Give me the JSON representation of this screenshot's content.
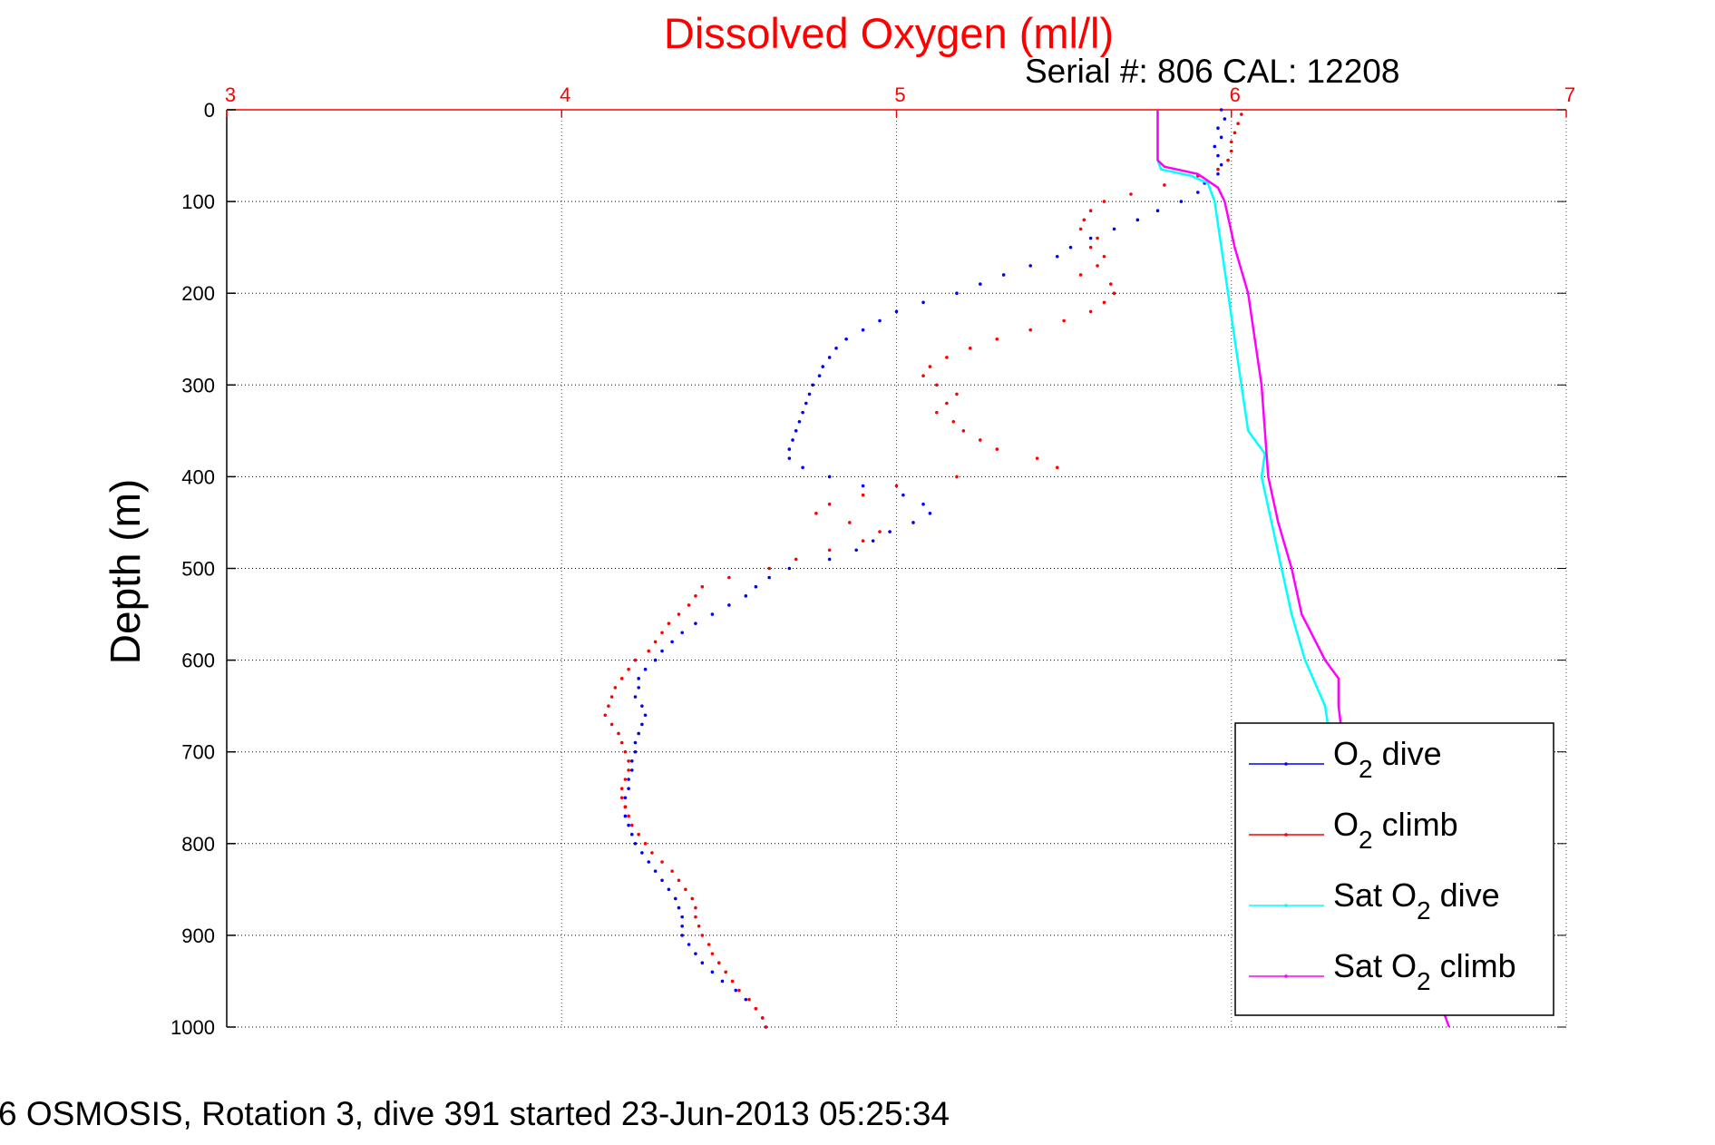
{
  "chart_data": {
    "type": "scatter",
    "title": "Dissolved Oxygen (ml/l)",
    "subtitle": "Serial #: 806  CAL: 12208",
    "ylabel": "Depth (m)",
    "xlabel": "",
    "xlim": [
      3,
      7
    ],
    "ylim": [
      0,
      1000
    ],
    "y_reversed": true,
    "x_axis_position": "top",
    "x_ticks": [
      3,
      4,
      5,
      6,
      7
    ],
    "x_tick_labels": [
      "3",
      "4",
      "5",
      "6",
      "7"
    ],
    "y_ticks": [
      0,
      100,
      200,
      300,
      400,
      500,
      600,
      700,
      800,
      900,
      1000
    ],
    "y_tick_labels": [
      "0",
      "100",
      "200",
      "300",
      "400",
      "500",
      "600",
      "700",
      "800",
      "900",
      "1000"
    ],
    "grid": true,
    "legend_position": "bottom-right",
    "legend": [
      {
        "label_main": "O",
        "label_sub": "2",
        "label_rest": " dive",
        "color": "#0000ff",
        "style": "dots"
      },
      {
        "label_main": "O",
        "label_sub": "2",
        "label_rest": " climb",
        "color": "#ff0000",
        "style": "dots"
      },
      {
        "label_main": "Sat O",
        "label_sub": "2",
        "label_rest": " dive",
        "color": "#00ffff",
        "style": "line"
      },
      {
        "label_main": "Sat O",
        "label_sub": "2",
        "label_rest": " climb",
        "color": "#ff00ff",
        "style": "line"
      }
    ],
    "series": [
      {
        "name": "O2 dive",
        "color": "#0000ff",
        "style": "dots",
        "points": [
          [
            5.97,
            0
          ],
          [
            5.98,
            10
          ],
          [
            5.96,
            20
          ],
          [
            5.97,
            30
          ],
          [
            5.95,
            40
          ],
          [
            5.96,
            50
          ],
          [
            5.97,
            60
          ],
          [
            5.96,
            70
          ],
          [
            5.92,
            80
          ],
          [
            5.9,
            90
          ],
          [
            5.85,
            100
          ],
          [
            5.78,
            110
          ],
          [
            5.72,
            120
          ],
          [
            5.65,
            130
          ],
          [
            5.58,
            140
          ],
          [
            5.52,
            150
          ],
          [
            5.48,
            160
          ],
          [
            5.4,
            170
          ],
          [
            5.32,
            180
          ],
          [
            5.25,
            190
          ],
          [
            5.18,
            200
          ],
          [
            5.08,
            210
          ],
          [
            5.0,
            220
          ],
          [
            4.95,
            230
          ],
          [
            4.9,
            240
          ],
          [
            4.85,
            250
          ],
          [
            4.82,
            260
          ],
          [
            4.8,
            270
          ],
          [
            4.78,
            280
          ],
          [
            4.77,
            290
          ],
          [
            4.75,
            300
          ],
          [
            4.74,
            310
          ],
          [
            4.73,
            320
          ],
          [
            4.72,
            330
          ],
          [
            4.71,
            340
          ],
          [
            4.7,
            350
          ],
          [
            4.69,
            360
          ],
          [
            4.68,
            370
          ],
          [
            4.68,
            380
          ],
          [
            4.72,
            390
          ],
          [
            4.8,
            400
          ],
          [
            4.9,
            410
          ],
          [
            5.02,
            420
          ],
          [
            5.08,
            430
          ],
          [
            5.1,
            440
          ],
          [
            5.05,
            450
          ],
          [
            4.98,
            460
          ],
          [
            4.93,
            470
          ],
          [
            4.88,
            480
          ],
          [
            4.8,
            490
          ],
          [
            4.68,
            500
          ],
          [
            4.62,
            510
          ],
          [
            4.58,
            520
          ],
          [
            4.55,
            530
          ],
          [
            4.5,
            540
          ],
          [
            4.45,
            550
          ],
          [
            4.4,
            560
          ],
          [
            4.36,
            570
          ],
          [
            4.33,
            580
          ],
          [
            4.3,
            590
          ],
          [
            4.28,
            600
          ],
          [
            4.25,
            610
          ],
          [
            4.23,
            620
          ],
          [
            4.23,
            630
          ],
          [
            4.22,
            640
          ],
          [
            4.24,
            650
          ],
          [
            4.25,
            660
          ],
          [
            4.24,
            670
          ],
          [
            4.23,
            680
          ],
          [
            4.22,
            690
          ],
          [
            4.22,
            700
          ],
          [
            4.21,
            710
          ],
          [
            4.21,
            720
          ],
          [
            4.2,
            730
          ],
          [
            4.2,
            740
          ],
          [
            4.19,
            750
          ],
          [
            4.19,
            760
          ],
          [
            4.19,
            770
          ],
          [
            4.2,
            780
          ],
          [
            4.21,
            790
          ],
          [
            4.22,
            800
          ],
          [
            4.24,
            810
          ],
          [
            4.26,
            820
          ],
          [
            4.28,
            830
          ],
          [
            4.3,
            840
          ],
          [
            4.32,
            850
          ],
          [
            4.34,
            860
          ],
          [
            4.35,
            870
          ],
          [
            4.36,
            880
          ],
          [
            4.36,
            890
          ],
          [
            4.36,
            900
          ],
          [
            4.38,
            910
          ],
          [
            4.4,
            920
          ],
          [
            4.42,
            930
          ],
          [
            4.45,
            940
          ],
          [
            4.48,
            950
          ],
          [
            4.52,
            960
          ],
          [
            4.55,
            970
          ],
          [
            4.58,
            980
          ],
          [
            4.6,
            990
          ],
          [
            4.61,
            1000
          ]
        ]
      },
      {
        "name": "O2 climb",
        "color": "#ff0000",
        "style": "dots",
        "points": [
          [
            6.03,
            5
          ],
          [
            6.02,
            15
          ],
          [
            6.01,
            25
          ],
          [
            6.0,
            35
          ],
          [
            6.0,
            45
          ],
          [
            5.99,
            55
          ],
          [
            5.96,
            65
          ],
          [
            5.9,
            72
          ],
          [
            5.8,
            82
          ],
          [
            5.7,
            92
          ],
          [
            5.62,
            100
          ],
          [
            5.58,
            110
          ],
          [
            5.56,
            120
          ],
          [
            5.55,
            130
          ],
          [
            5.6,
            140
          ],
          [
            5.58,
            150
          ],
          [
            5.62,
            160
          ],
          [
            5.6,
            170
          ],
          [
            5.55,
            180
          ],
          [
            5.64,
            190
          ],
          [
            5.65,
            200
          ],
          [
            5.62,
            210
          ],
          [
            5.58,
            220
          ],
          [
            5.5,
            230
          ],
          [
            5.4,
            240
          ],
          [
            5.3,
            250
          ],
          [
            5.22,
            260
          ],
          [
            5.15,
            270
          ],
          [
            5.1,
            280
          ],
          [
            5.08,
            290
          ],
          [
            5.12,
            300
          ],
          [
            5.18,
            310
          ],
          [
            5.15,
            320
          ],
          [
            5.12,
            330
          ],
          [
            5.17,
            340
          ],
          [
            5.2,
            350
          ],
          [
            5.25,
            360
          ],
          [
            5.3,
            370
          ],
          [
            5.42,
            380
          ],
          [
            5.48,
            390
          ],
          [
            5.18,
            400
          ],
          [
            5.0,
            410
          ],
          [
            4.9,
            420
          ],
          [
            4.8,
            430
          ],
          [
            4.76,
            440
          ],
          [
            4.86,
            450
          ],
          [
            4.95,
            460
          ],
          [
            4.9,
            470
          ],
          [
            4.8,
            480
          ],
          [
            4.7,
            490
          ],
          [
            4.62,
            500
          ],
          [
            4.5,
            510
          ],
          [
            4.42,
            520
          ],
          [
            4.4,
            530
          ],
          [
            4.38,
            540
          ],
          [
            4.35,
            550
          ],
          [
            4.32,
            560
          ],
          [
            4.3,
            570
          ],
          [
            4.28,
            580
          ],
          [
            4.26,
            590
          ],
          [
            4.22,
            600
          ],
          [
            4.2,
            610
          ],
          [
            4.18,
            620
          ],
          [
            4.16,
            630
          ],
          [
            4.15,
            640
          ],
          [
            4.14,
            650
          ],
          [
            4.13,
            660
          ],
          [
            4.15,
            670
          ],
          [
            4.17,
            680
          ],
          [
            4.18,
            690
          ],
          [
            4.19,
            700
          ],
          [
            4.2,
            710
          ],
          [
            4.2,
            720
          ],
          [
            4.19,
            730
          ],
          [
            4.18,
            740
          ],
          [
            4.18,
            750
          ],
          [
            4.19,
            760
          ],
          [
            4.2,
            770
          ],
          [
            4.21,
            780
          ],
          [
            4.23,
            790
          ],
          [
            4.25,
            800
          ],
          [
            4.27,
            810
          ],
          [
            4.3,
            820
          ],
          [
            4.33,
            830
          ],
          [
            4.35,
            840
          ],
          [
            4.37,
            850
          ],
          [
            4.39,
            860
          ],
          [
            4.4,
            870
          ],
          [
            4.4,
            880
          ],
          [
            4.41,
            890
          ],
          [
            4.42,
            900
          ],
          [
            4.44,
            910
          ],
          [
            4.45,
            920
          ],
          [
            4.47,
            930
          ],
          [
            4.49,
            940
          ],
          [
            4.51,
            950
          ],
          [
            4.53,
            960
          ],
          [
            4.56,
            970
          ],
          [
            4.58,
            980
          ],
          [
            4.6,
            990
          ],
          [
            4.61,
            1000
          ]
        ]
      },
      {
        "name": "Sat O2 dive",
        "color": "#00ffff",
        "style": "line",
        "points": [
          [
            5.78,
            0
          ],
          [
            5.78,
            20
          ],
          [
            5.78,
            40
          ],
          [
            5.78,
            55
          ],
          [
            5.79,
            65
          ],
          [
            5.88,
            72
          ],
          [
            5.93,
            80
          ],
          [
            5.95,
            100
          ],
          [
            5.97,
            150
          ],
          [
            5.99,
            200
          ],
          [
            6.01,
            250
          ],
          [
            6.03,
            300
          ],
          [
            6.05,
            350
          ],
          [
            6.1,
            375
          ],
          [
            6.09,
            400
          ],
          [
            6.12,
            450
          ],
          [
            6.15,
            500
          ],
          [
            6.18,
            550
          ],
          [
            6.22,
            600
          ],
          [
            6.28,
            650
          ],
          [
            6.3,
            700
          ]
        ]
      },
      {
        "name": "Sat O2 climb",
        "color": "#ff00ff",
        "style": "line",
        "points": [
          [
            5.78,
            0
          ],
          [
            5.78,
            20
          ],
          [
            5.78,
            40
          ],
          [
            5.78,
            55
          ],
          [
            5.8,
            62
          ],
          [
            5.9,
            70
          ],
          [
            5.96,
            85
          ],
          [
            5.98,
            100
          ],
          [
            6.01,
            150
          ],
          [
            6.05,
            200
          ],
          [
            6.07,
            250
          ],
          [
            6.09,
            300
          ],
          [
            6.1,
            350
          ],
          [
            6.11,
            400
          ],
          [
            6.14,
            450
          ],
          [
            6.18,
            500
          ],
          [
            6.21,
            550
          ],
          [
            6.28,
            600
          ],
          [
            6.32,
            620
          ],
          [
            6.32,
            650
          ],
          [
            6.33,
            680
          ],
          [
            6.62,
            970
          ],
          [
            6.65,
            1000
          ]
        ]
      }
    ]
  },
  "footer": {
    "caption": "6 OSMOSIS, Rotation 3, dive 391 started 23-Jun-2013 05:25:34"
  }
}
